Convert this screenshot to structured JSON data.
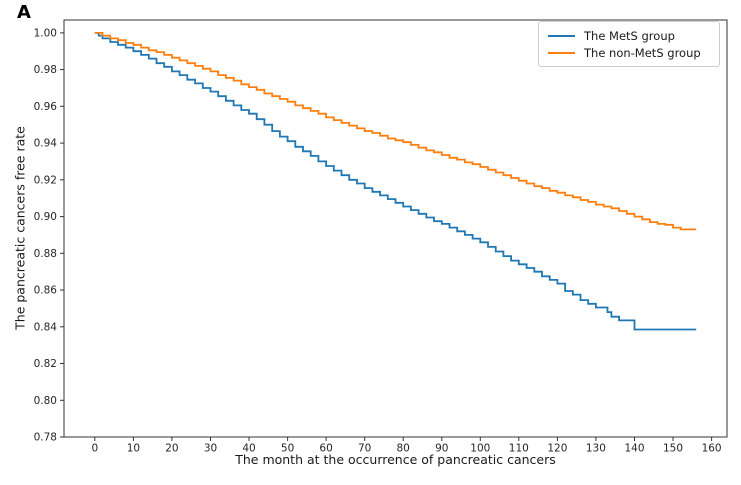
{
  "figure": {
    "panel_label": "A"
  },
  "colors": {
    "mets_line": "#1f77b4",
    "non_mets_line": "#ff7f0e",
    "axis": "#333333",
    "tick_text": "#262626",
    "legend_border": "#cdcdcd",
    "background": "#ffffff"
  },
  "chart_data": {
    "type": "line",
    "subtype": "kaplan-meier-step",
    "title": "",
    "xlabel": "The month at the occurrence of pancreatic cancers",
    "ylabel": "The pancreatic cancers free rate",
    "xlim": [
      -8,
      164
    ],
    "ylim": [
      0.78,
      1.007
    ],
    "xticks": [
      0,
      10,
      20,
      30,
      40,
      50,
      60,
      70,
      80,
      90,
      100,
      110,
      120,
      130,
      140,
      150,
      160
    ],
    "yticks": [
      1.0,
      0.98,
      0.96,
      0.94,
      0.92,
      0.9,
      0.88,
      0.86,
      0.84,
      0.82,
      0.8,
      0.78
    ],
    "grid": false,
    "legend_position": "upper right",
    "series": [
      {
        "name": "The MetS group",
        "color": "#1f77b4",
        "points": [
          [
            0,
            1.0
          ],
          [
            1,
            0.9985
          ],
          [
            2,
            0.997
          ],
          [
            4,
            0.995
          ],
          [
            6,
            0.9935
          ],
          [
            8,
            0.992
          ],
          [
            10,
            0.99
          ],
          [
            12,
            0.988
          ],
          [
            14,
            0.986
          ],
          [
            16,
            0.9835
          ],
          [
            18,
            0.9815
          ],
          [
            20,
            0.979
          ],
          [
            22,
            0.977
          ],
          [
            24,
            0.9745
          ],
          [
            26,
            0.9725
          ],
          [
            28,
            0.97
          ],
          [
            30,
            0.968
          ],
          [
            32,
            0.9655
          ],
          [
            34,
            0.963
          ],
          [
            36,
            0.9605
          ],
          [
            38,
            0.958
          ],
          [
            40,
            0.956
          ],
          [
            42,
            0.953
          ],
          [
            44,
            0.95
          ],
          [
            46,
            0.9465
          ],
          [
            48,
            0.9435
          ],
          [
            50,
            0.941
          ],
          [
            52,
            0.938
          ],
          [
            54,
            0.9355
          ],
          [
            56,
            0.933
          ],
          [
            58,
            0.93
          ],
          [
            60,
            0.9275
          ],
          [
            62,
            0.925
          ],
          [
            64,
            0.9225
          ],
          [
            66,
            0.92
          ],
          [
            68,
            0.918
          ],
          [
            70,
            0.9155
          ],
          [
            72,
            0.9135
          ],
          [
            74,
            0.9115
          ],
          [
            76,
            0.9095
          ],
          [
            78,
            0.9075
          ],
          [
            80,
            0.9055
          ],
          [
            82,
            0.9035
          ],
          [
            84,
            0.9015
          ],
          [
            86,
            0.8995
          ],
          [
            88,
            0.8975
          ],
          [
            90,
            0.896
          ],
          [
            92,
            0.894
          ],
          [
            94,
            0.892
          ],
          [
            96,
            0.89
          ],
          [
            98,
            0.888
          ],
          [
            100,
            0.886
          ],
          [
            102,
            0.8835
          ],
          [
            104,
            0.881
          ],
          [
            106,
            0.8785
          ],
          [
            108,
            0.876
          ],
          [
            110,
            0.874
          ],
          [
            112,
            0.872
          ],
          [
            114,
            0.87
          ],
          [
            116,
            0.8675
          ],
          [
            118,
            0.8655
          ],
          [
            120,
            0.8635
          ],
          [
            122,
            0.8595
          ],
          [
            124,
            0.8575
          ],
          [
            126,
            0.8545
          ],
          [
            128,
            0.8525
          ],
          [
            130,
            0.8505
          ],
          [
            133,
            0.848
          ],
          [
            134,
            0.8455
          ],
          [
            136,
            0.8435
          ],
          [
            140,
            0.8385
          ],
          [
            156,
            0.8385
          ]
        ]
      },
      {
        "name": "The non-MetS group",
        "color": "#ff7f0e",
        "points": [
          [
            0,
            1.0
          ],
          [
            2,
            0.9985
          ],
          [
            4,
            0.997
          ],
          [
            6,
            0.996
          ],
          [
            8,
            0.9945
          ],
          [
            10,
            0.9935
          ],
          [
            12,
            0.992
          ],
          [
            14,
            0.9905
          ],
          [
            16,
            0.9895
          ],
          [
            18,
            0.988
          ],
          [
            20,
            0.9865
          ],
          [
            22,
            0.985
          ],
          [
            24,
            0.9835
          ],
          [
            26,
            0.982
          ],
          [
            28,
            0.9805
          ],
          [
            30,
            0.979
          ],
          [
            32,
            0.977
          ],
          [
            34,
            0.9755
          ],
          [
            36,
            0.974
          ],
          [
            38,
            0.972
          ],
          [
            40,
            0.9705
          ],
          [
            42,
            0.969
          ],
          [
            44,
            0.967
          ],
          [
            46,
            0.9655
          ],
          [
            48,
            0.964
          ],
          [
            50,
            0.9625
          ],
          [
            52,
            0.9605
          ],
          [
            54,
            0.959
          ],
          [
            56,
            0.9575
          ],
          [
            58,
            0.956
          ],
          [
            60,
            0.954
          ],
          [
            62,
            0.9525
          ],
          [
            64,
            0.951
          ],
          [
            66,
            0.9495
          ],
          [
            68,
            0.948
          ],
          [
            70,
            0.9465
          ],
          [
            72,
            0.9455
          ],
          [
            74,
            0.944
          ],
          [
            76,
            0.9425
          ],
          [
            78,
            0.9415
          ],
          [
            80,
            0.9405
          ],
          [
            82,
            0.939
          ],
          [
            84,
            0.9375
          ],
          [
            86,
            0.936
          ],
          [
            88,
            0.935
          ],
          [
            90,
            0.9335
          ],
          [
            92,
            0.932
          ],
          [
            94,
            0.931
          ],
          [
            96,
            0.9295
          ],
          [
            98,
            0.9285
          ],
          [
            100,
            0.927
          ],
          [
            102,
            0.9255
          ],
          [
            104,
            0.924
          ],
          [
            106,
            0.9225
          ],
          [
            108,
            0.921
          ],
          [
            110,
            0.9195
          ],
          [
            112,
            0.918
          ],
          [
            114,
            0.9165
          ],
          [
            116,
            0.9155
          ],
          [
            118,
            0.914
          ],
          [
            120,
            0.913
          ],
          [
            122,
            0.9115
          ],
          [
            124,
            0.9105
          ],
          [
            126,
            0.909
          ],
          [
            128,
            0.908
          ],
          [
            130,
            0.9065
          ],
          [
            132,
            0.9055
          ],
          [
            134,
            0.9045
          ],
          [
            136,
            0.903
          ],
          [
            138,
            0.9015
          ],
          [
            140,
            0.9
          ],
          [
            142,
            0.8985
          ],
          [
            144,
            0.897
          ],
          [
            146,
            0.896
          ],
          [
            148,
            0.8955
          ],
          [
            150,
            0.894
          ],
          [
            152,
            0.893
          ],
          [
            156,
            0.893
          ]
        ]
      }
    ]
  }
}
